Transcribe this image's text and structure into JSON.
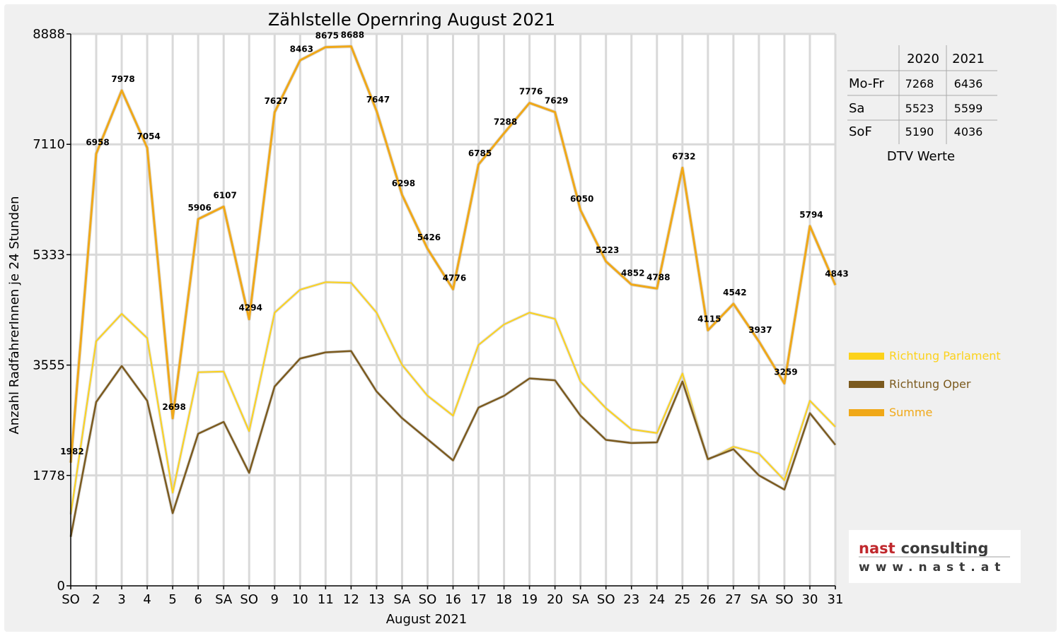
{
  "chart_data": {
    "type": "line",
    "title": "Zählstelle Opernring August 2021",
    "xlabel": "August 2021",
    "ylabel": "Anzahl RadfahrerInnen je 24 Stunden",
    "ylim": [
      0,
      8888
    ],
    "yticks": [
      0,
      1778,
      3555,
      5333,
      7110,
      8888
    ],
    "ytick_labels": [
      "0",
      "1778",
      "3555",
      "5333",
      "7110",
      "8888"
    ],
    "grid": true,
    "legend_position": "right",
    "categories": [
      "SO",
      "2",
      "3",
      "4",
      "5",
      "6",
      "SA",
      "SO",
      "9",
      "10",
      "11",
      "12",
      "13",
      "SA",
      "SO",
      "16",
      "17",
      "18",
      "19",
      "20",
      "SA",
      "SO",
      "23",
      "24",
      "25",
      "26",
      "27",
      "SA",
      "SO",
      "30",
      "31"
    ],
    "highlight_categories": [
      0,
      7,
      14,
      21,
      28
    ],
    "highlight_color": "#e8000b",
    "series": [
      {
        "name": "Richtung Parlament",
        "color": "#fcd21c",
        "values": [
          1150,
          3940,
          4380,
          3990,
          1500,
          3440,
          3450,
          2490,
          4400,
          4770,
          4890,
          4880,
          4400,
          3560,
          3060,
          2740,
          3880,
          4210,
          4400,
          4300,
          3290,
          2860,
          2520,
          2460,
          3420,
          2030,
          2240,
          2130,
          1700,
          2980,
          2560
        ]
      },
      {
        "name": "Richtung Oper",
        "color": "#7b5a1e",
        "values": [
          790,
          2960,
          3540,
          2980,
          1170,
          2450,
          2640,
          1820,
          3210,
          3660,
          3760,
          3780,
          3130,
          2700,
          2360,
          2020,
          2870,
          3060,
          3340,
          3310,
          2740,
          2350,
          2300,
          2310,
          3290,
          2040,
          2200,
          1780,
          1550,
          2780,
          2270
        ]
      },
      {
        "name": "Summe",
        "color": "#f0a818",
        "values": [
          1982,
          6958,
          7978,
          7054,
          2698,
          5906,
          6107,
          4294,
          7627,
          8463,
          8675,
          8688,
          7647,
          6298,
          5426,
          4776,
          6785,
          7288,
          7776,
          7629,
          6050,
          5223,
          4852,
          4788,
          6732,
          4115,
          4542,
          3937,
          3259,
          5794,
          4843
        ],
        "data_labels": [
          "1982",
          "6958",
          "7978",
          "7054",
          "2698",
          "5906",
          "6107",
          "4294",
          "7627",
          "8463",
          "8675",
          "8688",
          "7647",
          "6298",
          "5426",
          "4776",
          "6785",
          "7288",
          "7776",
          "7629",
          "6050",
          "5223",
          "4852",
          "4788",
          "6732",
          "4115",
          "4542",
          "3937",
          "3259",
          "5794",
          "4843"
        ]
      }
    ]
  },
  "dtv_table": {
    "caption": "DTV Werte",
    "headers": [
      "",
      "2020",
      "2021"
    ],
    "rows": [
      {
        "label": "Mo-Fr",
        "v2020": "7268",
        "v2021": "6436"
      },
      {
        "label": "Sa",
        "v2020": "5523",
        "v2021": "5599"
      },
      {
        "label": "SoF",
        "v2020": "5190",
        "v2021": "4036"
      }
    ]
  },
  "logo": {
    "word1": "nast",
    "word2": "consulting",
    "url": "www.nast.at"
  }
}
